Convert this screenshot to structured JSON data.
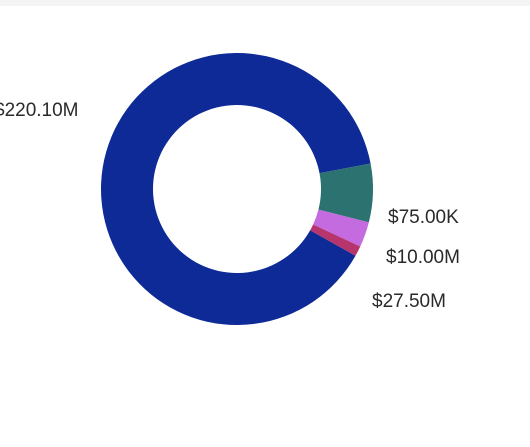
{
  "chart_data": {
    "type": "pie",
    "variant": "donut",
    "legend": "none",
    "slices": [
      {
        "label": "$220.10M",
        "value": 220.1,
        "color": "#0d2a97"
      },
      {
        "label": "$27.50M",
        "value": 27.5,
        "color": "#2b7270"
      },
      {
        "label": "$10.00M",
        "value": 10.0,
        "color": "#c56be0"
      },
      {
        "label": "$75.00K",
        "value": 0.075,
        "color": "#b6356d"
      }
    ]
  }
}
